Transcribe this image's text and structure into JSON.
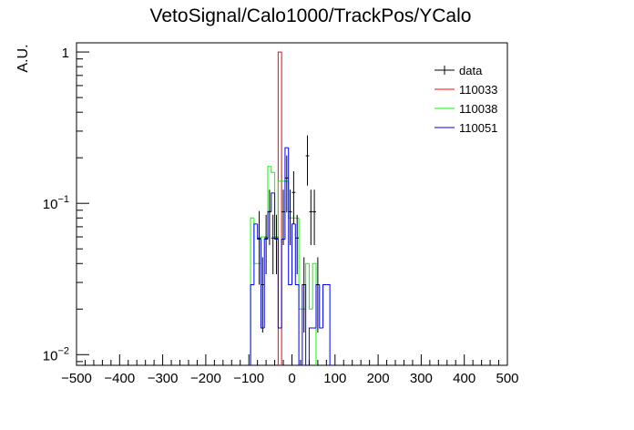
{
  "chart_data": {
    "type": "histogram",
    "title": "VetoSignal/Calo1000/TrackPos/YCalo",
    "ylabel": "A.U.",
    "xlabel": "",
    "xlim": [
      -500,
      500
    ],
    "ylim": [
      0.0085,
      1.15
    ],
    "yscale": "log",
    "bin_width": 8,
    "x_ticks": [
      -500,
      -400,
      -300,
      -200,
      -100,
      0,
      100,
      200,
      300,
      400,
      500
    ],
    "y_ticks": [
      {
        "value": 0.01,
        "base": "10",
        "exp": "−2"
      },
      {
        "value": 0.1,
        "base": "10",
        "exp": "−1"
      },
      {
        "value": 1,
        "base": "1",
        "exp": ""
      }
    ],
    "legend": {
      "position": "top-right"
    },
    "series": [
      {
        "name": "data",
        "color": "#000000",
        "style": "points",
        "points": [
          {
            "x": -76,
            "y": 0.059,
            "err": 0.03
          },
          {
            "x": -68,
            "y": 0.029,
            "err": 0.015
          },
          {
            "x": -60,
            "y": 0.059,
            "err": 0.025
          },
          {
            "x": -52,
            "y": 0.088,
            "err": 0.035
          },
          {
            "x": -44,
            "y": 0.059,
            "err": 0.025
          },
          {
            "x": -36,
            "y": 0.059,
            "err": 0.025
          },
          {
            "x": -20,
            "y": 0.088,
            "err": 0.035
          },
          {
            "x": -12,
            "y": 0.147,
            "err": 0.06
          },
          {
            "x": -4,
            "y": 0.088,
            "err": 0.035
          },
          {
            "x": 4,
            "y": 0.118,
            "err": 0.045
          },
          {
            "x": 12,
            "y": 0.059,
            "err": 0.025
          },
          {
            "x": 28,
            "y": 0.029,
            "err": 0.015
          },
          {
            "x": 36,
            "y": 0.206,
            "err": 0.075
          },
          {
            "x": 44,
            "y": 0.088,
            "err": 0.035
          },
          {
            "x": 52,
            "y": 0.088,
            "err": 0.035
          },
          {
            "x": 60,
            "y": 0.029,
            "err": 0.015
          }
        ]
      },
      {
        "name": "110033",
        "color": "#ff0000",
        "style": "step",
        "bins": [
          {
            "x0": -32,
            "x1": -24,
            "y": 1.0
          }
        ]
      },
      {
        "name": "110038",
        "color": "#00ff00",
        "style": "step",
        "bins": [
          {
            "x0": -96,
            "x1": -88,
            "y": 0.08
          },
          {
            "x0": -88,
            "x1": -80,
            "y": 0.04
          },
          {
            "x0": -80,
            "x1": -72,
            "y": 0.04
          },
          {
            "x0": -72,
            "x1": -64,
            "y": 0.06
          },
          {
            "x0": -64,
            "x1": -56,
            "y": 0.06
          },
          {
            "x0": -56,
            "x1": -48,
            "y": 0.175
          },
          {
            "x0": -48,
            "x1": -40,
            "y": 0.16
          },
          {
            "x0": -40,
            "x1": -32,
            "y": 0.06
          },
          {
            "x0": -32,
            "x1": -24,
            "y": 0.14
          },
          {
            "x0": -24,
            "x1": -16,
            "y": 0.14
          },
          {
            "x0": -16,
            "x1": -8,
            "y": 0.14
          },
          {
            "x0": -8,
            "x1": 0,
            "y": 0.08
          },
          {
            "x0": 0,
            "x1": 8,
            "y": 0.08
          },
          {
            "x0": 8,
            "x1": 16,
            "y": 0.08
          },
          {
            "x0": 16,
            "x1": 24,
            "y": 0.02
          },
          {
            "x0": 24,
            "x1": 32,
            "y": 0.02
          },
          {
            "x0": 32,
            "x1": 40,
            "y": 0.04
          },
          {
            "x0": 40,
            "x1": 48,
            "y": 0.02
          },
          {
            "x0": 48,
            "x1": 56,
            "y": 0.04
          }
        ]
      },
      {
        "name": "110051",
        "color": "#0000ff",
        "style": "step",
        "bins": [
          {
            "x0": -96,
            "x1": -88,
            "y": 0.029
          },
          {
            "x0": -88,
            "x1": -80,
            "y": 0.073
          },
          {
            "x0": -80,
            "x1": -72,
            "y": 0.058
          },
          {
            "x0": -72,
            "x1": -64,
            "y": 0.015
          },
          {
            "x0": -64,
            "x1": -56,
            "y": 0.058
          },
          {
            "x0": -56,
            "x1": -48,
            "y": 0.088
          },
          {
            "x0": -48,
            "x1": -40,
            "y": 0.117
          },
          {
            "x0": -40,
            "x1": -32,
            "y": 0.058
          },
          {
            "x0": -32,
            "x1": -24,
            "y": 0.015
          },
          {
            "x0": -24,
            "x1": -16,
            "y": 0.058
          },
          {
            "x0": -16,
            "x1": -8,
            "y": 0.233
          },
          {
            "x0": -8,
            "x1": 0,
            "y": 0.029
          },
          {
            "x0": 0,
            "x1": 8,
            "y": 0.073
          },
          {
            "x0": 8,
            "x1": 16,
            "y": 0.029
          },
          {
            "x0": 24,
            "x1": 32,
            "y": 0.029
          },
          {
            "x0": 40,
            "x1": 48,
            "y": 0.015
          },
          {
            "x0": 48,
            "x1": 56,
            "y": 0.015
          },
          {
            "x0": 56,
            "x1": 64,
            "y": 0.029
          },
          {
            "x0": 64,
            "x1": 72,
            "y": 0.015
          },
          {
            "x0": 72,
            "x1": 80,
            "y": 0.029
          },
          {
            "x0": 80,
            "x1": 88,
            "y": 0.029
          }
        ]
      }
    ]
  }
}
